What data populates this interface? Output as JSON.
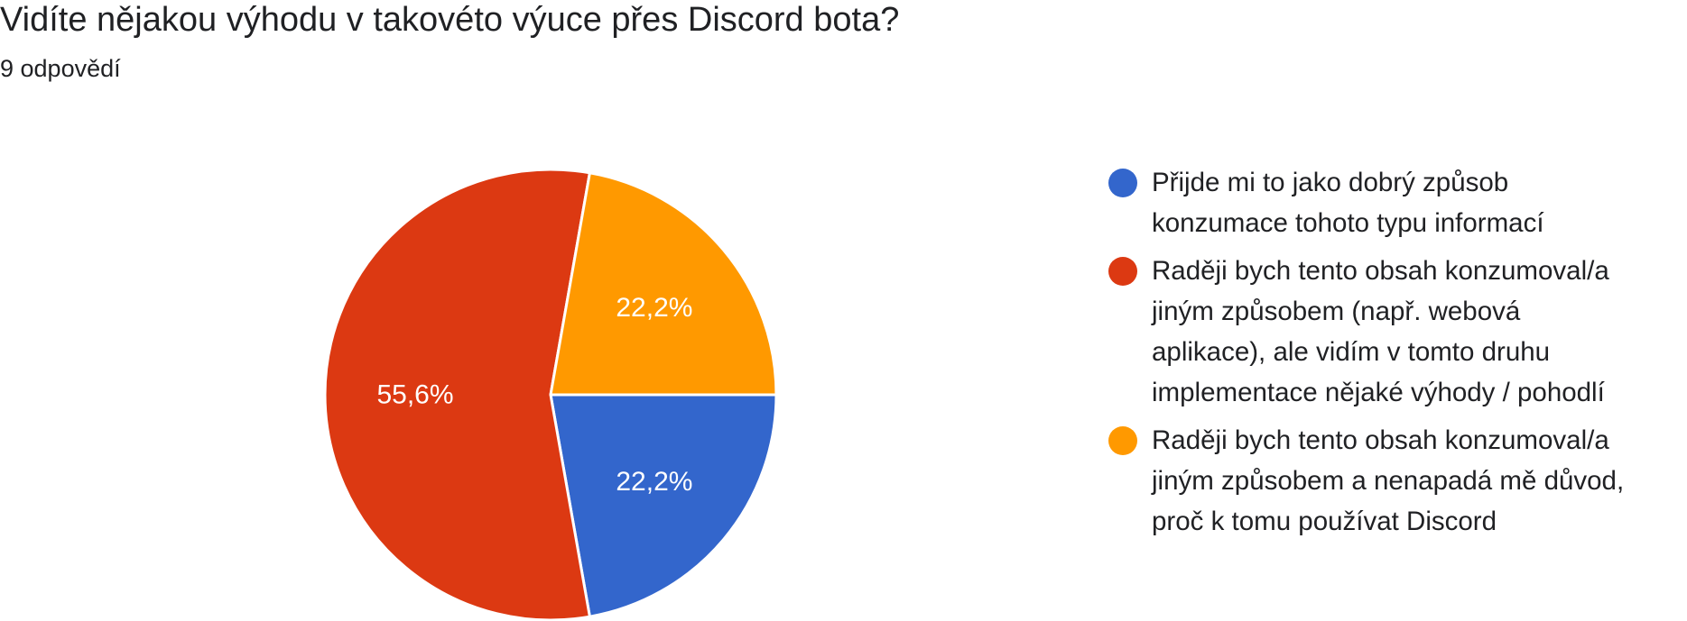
{
  "header": {
    "title": "Vidíte nějakou výhodu v takovéto výuce přes Discord bota?",
    "subtitle": "9 odpovědí"
  },
  "chart_data": {
    "type": "pie",
    "title": "Vidíte nějakou výhodu v takovéto výuce přes Discord bota?",
    "subtitle": "9 odpovědí",
    "total_responses": 9,
    "start_angle_deg": 90,
    "direction": "clockwise",
    "legend_position": "right",
    "slices": [
      {
        "label": "Přijde mi to jako dobrý způsob konzumace tohoto typu informací",
        "legend_lines": [
          "Přijde mi to jako dobrý způsob",
          "konzumace tohoto typu informací"
        ],
        "count": 2,
        "value": 22.2,
        "value_label": "22,2%",
        "color": "#3366cc"
      },
      {
        "label": "Raději bych tento obsah konzumoval/a jiným způsobem (např. webová aplikace), ale vidím v tomto druhu implementace nějaké výhody / pohodlí",
        "legend_lines": [
          "Raději bych tento obsah konzumoval/a",
          "jiným způsobem (např. webová",
          "aplikace), ale vidím v tomto druhu",
          "implementace nějaké výhody / pohodlí"
        ],
        "count": 5,
        "value": 55.6,
        "value_label": "55,6%",
        "color": "#dc3912"
      },
      {
        "label": "Raději bych tento obsah konzumoval/a jiným způsobem a nenapadá mě důvod, proč k tomu používat Discord",
        "legend_lines": [
          "Raději bych tento obsah konzumoval/a",
          "jiným způsobem a nenapadá mě důvod,",
          "proč k tomu používat Discord"
        ],
        "count": 2,
        "value": 22.2,
        "value_label": "22,2%",
        "color": "#ff9900"
      }
    ]
  }
}
